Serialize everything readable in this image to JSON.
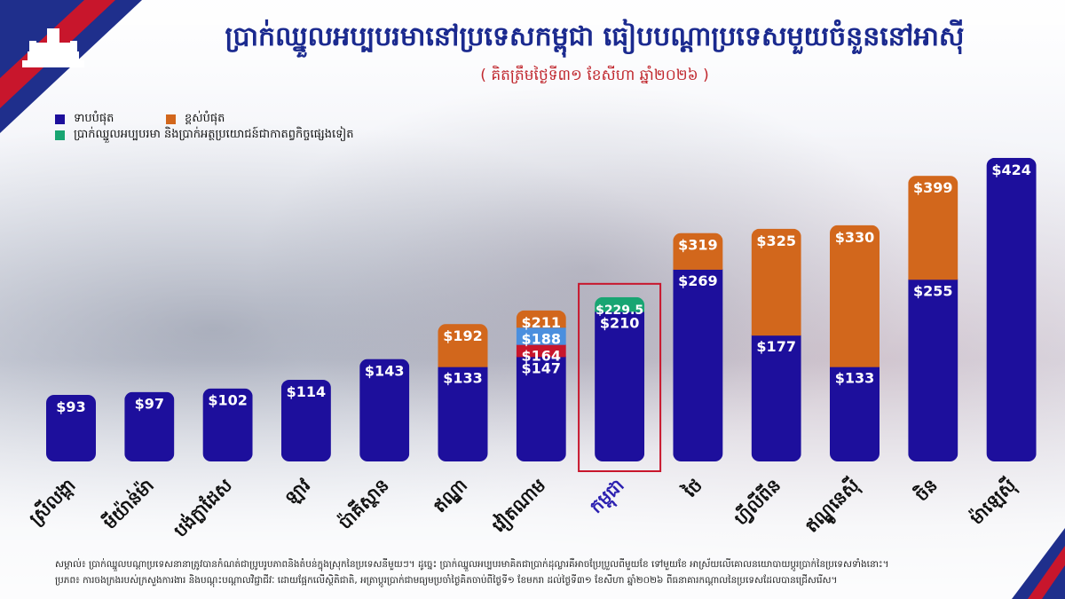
{
  "header": {
    "title": "ប្រាក់ឈ្នួលអប្បបរមានៅប្រទេសកម្ពុជា ធៀបបណ្ដាប្រទេសមួយចំនួននៅអាស៊ី",
    "subtitle": "( គិតត្រឹមថ្ងៃទី៣១ ខែសីហា ឆ្នាំ២០២៦ )"
  },
  "legend": {
    "lowest": "ទាបបំផុត",
    "highest": "ខ្ពស់បំផុត",
    "cambodia_extra": "ប្រាក់ឈ្នួលអប្បបរមា និងប្រាក់អត្ថប្រយោជន៍ជាកាតព្វកិច្ចផ្សេងទៀត"
  },
  "colors": {
    "lowest": "#1d0f9c",
    "highest": "#d2671c",
    "cambodia_extra": "#18a572",
    "tier_red": "#c8162c",
    "tier_light_blue": "#4b8fde",
    "highlight_border": "#c8162c",
    "highlight_label": "#2b1fb0"
  },
  "chart_data": {
    "type": "bar",
    "ylim": [
      0,
      440
    ],
    "bars": [
      {
        "label": "ស្រីលង្កា",
        "segments": [
          {
            "value": 93,
            "text": "$93",
            "series": "lowest"
          }
        ]
      },
      {
        "label": "មីយ៉ាន់ម៉ា",
        "segments": [
          {
            "value": 97,
            "text": "$97",
            "series": "lowest"
          }
        ]
      },
      {
        "label": "បង់ក្លាដែស",
        "segments": [
          {
            "value": 102,
            "text": "$102",
            "series": "lowest"
          }
        ]
      },
      {
        "label": "ឡាវ",
        "segments": [
          {
            "value": 114,
            "text": "$114",
            "series": "lowest"
          }
        ]
      },
      {
        "label": "ប៉ាគីស្ថាន",
        "segments": [
          {
            "value": 143,
            "text": "$143",
            "series": "lowest"
          }
        ]
      },
      {
        "label": "ឥណ្ឌា",
        "segments": [
          {
            "value": 133,
            "text": "$133",
            "series": "lowest"
          },
          {
            "value": 192,
            "text": "$192",
            "series": "highest"
          }
        ]
      },
      {
        "label": "វៀតណាម",
        "segments": [
          {
            "value": 147,
            "text": "$147",
            "series": "lowest"
          },
          {
            "value": 164,
            "text": "$164",
            "series": "tier_red"
          },
          {
            "value": 188,
            "text": "$188",
            "series": "tier_light_blue"
          },
          {
            "value": 211,
            "text": "$211",
            "series": "highest"
          }
        ]
      },
      {
        "label": "កម្ពុជា",
        "highlight": true,
        "segments": [
          {
            "value": 210,
            "text": "$210",
            "series": "lowest"
          },
          {
            "value": 229.5,
            "text": "$229.5",
            "series": "cambodia_extra"
          }
        ]
      },
      {
        "label": "ថៃ",
        "segments": [
          {
            "value": 269,
            "text": "$269",
            "series": "lowest"
          },
          {
            "value": 319,
            "text": "$319",
            "series": "highest"
          }
        ]
      },
      {
        "label": "ហ្វីលីពីន",
        "segments": [
          {
            "value": 177,
            "text": "$177",
            "series": "lowest"
          },
          {
            "value": 325,
            "text": "$325",
            "series": "highest"
          }
        ]
      },
      {
        "label": "ឥណ្ឌូនេស៊ី",
        "segments": [
          {
            "value": 133,
            "text": "$133",
            "series": "lowest"
          },
          {
            "value": 330,
            "text": "$330",
            "series": "highest"
          }
        ]
      },
      {
        "label": "ចិន",
        "segments": [
          {
            "value": 255,
            "text": "$255",
            "series": "lowest"
          },
          {
            "value": 399,
            "text": "$399",
            "series": "highest"
          }
        ]
      },
      {
        "label": "ម៉ាឡេស៊ី",
        "segments": [
          {
            "value": 424,
            "text": "$424",
            "series": "lowest"
          }
        ]
      }
    ]
  },
  "footnote": {
    "line1": "សម្គាល់៖ ប្រាក់ឈ្នួលបណ្ដាប្រទេសនានាត្រូវបានកំណត់ជាប្រូបរូបភាពនិងតំបន់ក្នុងស្រុកនៃប្រទេសនីមួយៗ។ ដូច្នេះ ប្រាក់ឈ្នួលអប្បបរមាគិតជាប្រាក់ដុល្លារគឺអាចប្រែប្រួលពីមួយខែ ទៅមួយខែ អាស្រ័យលើគោលនយោបាយប្តូរប្រាក់នៃប្រទេសទាំងនោះ។",
    "line2": "ប្រភព៖ ការចងក្រងរបស់ក្រសួងការងារ និងបណ្តុះបណ្តាលវិជ្ជាជីវៈ ដោយផ្អែកលើស្ថិតិជាតិ, អត្រាប្តូរប្រាក់ជាមធ្យមប្រចាំថ្ងៃគិតចាប់ពីថ្ងៃទី១ ខែមករា ដល់ថ្ងៃទី៣១ ខែសីហា ឆ្នាំ២០២៦ ពីធនាគារកណ្តាលនៃប្រទេសដែលបានជ្រើសរើស។"
  }
}
